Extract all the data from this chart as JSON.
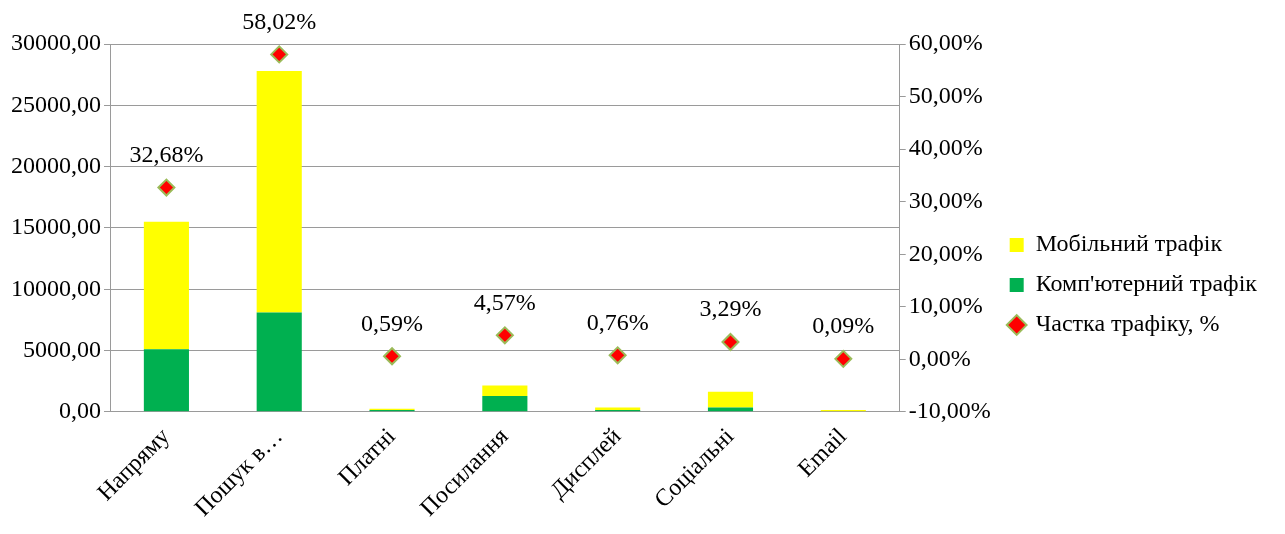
{
  "chart_data": {
    "type": "bar",
    "stacked": true,
    "categories": [
      "Напряму",
      "Пошук в…",
      "Платні",
      "Посилання",
      "Дисплей",
      "Соціальні",
      "Email"
    ],
    "series": [
      {
        "name": "Комп'ютерний трафік",
        "color": "#00b050",
        "values": [
          5100,
          8100,
          150,
          1300,
          150,
          350,
          null
        ]
      },
      {
        "name": "Мобільний трафік",
        "color": "#ffff00",
        "values": [
          10400,
          19700,
          100,
          850,
          200,
          1300,
          150
        ]
      },
      {
        "name": "Частка трафіку, %",
        "type": "scatter",
        "axis": "y2",
        "color": "#ff0000",
        "marker": "diamond",
        "values": [
          32.68,
          58.02,
          0.59,
          4.57,
          0.76,
          3.29,
          0.09
        ],
        "value_labels": [
          "32,68%",
          "58,02%",
          "0,59%",
          "4,57%",
          "0,76%",
          "3,29%",
          "0,09%"
        ]
      }
    ],
    "ylim": [
      0,
      30000
    ],
    "yticks": [
      {
        "value": 0,
        "label": "0,00"
      },
      {
        "value": 5000,
        "label": "5000,00"
      },
      {
        "value": 10000,
        "label": "10000,00"
      },
      {
        "value": 15000,
        "label": "15000,00"
      },
      {
        "value": 20000,
        "label": "20000,00"
      },
      {
        "value": 25000,
        "label": "25000,00"
      },
      {
        "value": 30000,
        "label": "30000,00"
      }
    ],
    "y2lim": [
      -10,
      60
    ],
    "y2ticks": [
      {
        "value": -10,
        "label": "-10,00%"
      },
      {
        "value": 0,
        "label": "0,00%"
      },
      {
        "value": 10,
        "label": "10,00%"
      },
      {
        "value": 20,
        "label": "20,00%"
      },
      {
        "value": 30,
        "label": "30,00%"
      },
      {
        "value": 40,
        "label": "40,00%"
      },
      {
        "value": 50,
        "label": "50,00%"
      },
      {
        "value": 60,
        "label": "60,00%"
      }
    ],
    "grid": "y",
    "legend": "right"
  }
}
